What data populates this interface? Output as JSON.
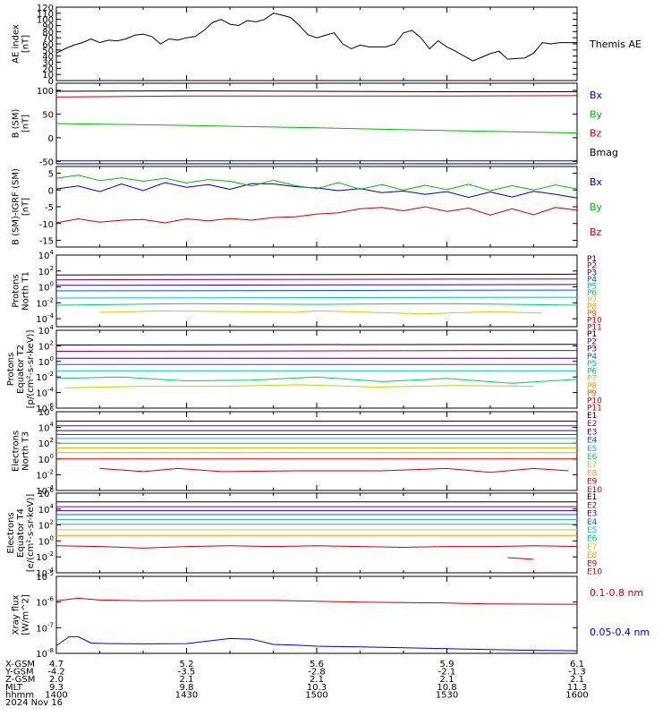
{
  "chart_data": [
    {
      "type": "line",
      "ylabel": [
        "AE index",
        "[nT]"
      ],
      "ylim": [
        0,
        120
      ],
      "yticks": [
        0,
        10,
        20,
        30,
        40,
        50,
        60,
        70,
        80,
        90,
        100,
        110,
        120
      ],
      "series": [
        {
          "name": "Themis AE",
          "color": "#000000",
          "x": [
            0,
            2,
            4,
            6,
            8,
            10,
            12,
            14,
            16,
            18,
            20,
            22,
            24,
            26,
            28,
            30,
            32,
            34,
            36,
            38,
            40,
            42,
            44,
            46,
            48,
            50,
            52,
            54,
            56,
            58,
            60,
            62,
            64,
            66,
            68,
            70,
            72,
            74,
            76,
            78,
            80,
            82,
            84,
            86,
            88,
            90,
            92,
            94,
            96,
            98,
            100,
            102,
            104,
            106,
            108,
            110,
            112,
            114,
            116,
            118,
            120
          ],
          "y": [
            45,
            52,
            58,
            62,
            68,
            62,
            66,
            65,
            68,
            74,
            76,
            72,
            60,
            68,
            66,
            70,
            72,
            82,
            95,
            100,
            92,
            90,
            98,
            96,
            100,
            110,
            107,
            103,
            90,
            75,
            70,
            74,
            78,
            60,
            52,
            58,
            55,
            55,
            55,
            60,
            78,
            82,
            70,
            52,
            65,
            55,
            48,
            40,
            32,
            38,
            44,
            48,
            35,
            36,
            37,
            45,
            62,
            60,
            62,
            62,
            62
          ]
        }
      ]
    },
    {
      "type": "line",
      "ylabel": [
        "B (SM)",
        "[nT]"
      ],
      "ylim": [
        -55,
        115
      ],
      "yticks": [
        -50,
        0,
        50,
        100
      ],
      "series": [
        {
          "name": "Bx",
          "color": "#0000cc",
          "x": [
            0,
            120
          ],
          "y": [
            -49,
            -49
          ]
        },
        {
          "name": "By",
          "color": "#00bb00",
          "x": [
            0,
            30,
            60,
            90,
            120
          ],
          "y": [
            30,
            26,
            21,
            15,
            10
          ]
        },
        {
          "name": "Bz",
          "color": "#cc0000",
          "x": [
            0,
            30,
            60,
            90,
            120
          ],
          "y": [
            86,
            88,
            88,
            88,
            89
          ]
        },
        {
          "name": "Bmag",
          "color": "#000000",
          "x": [
            0,
            30,
            60,
            90,
            120
          ],
          "y": [
            98,
            99,
            98,
            97,
            97
          ]
        }
      ]
    },
    {
      "type": "line",
      "ylabel": [
        "B (SM)-IGRF (SM)",
        "[nT]"
      ],
      "ylim": [
        -17,
        7
      ],
      "yticks": [
        -15,
        -10,
        -5,
        0,
        5
      ],
      "series": [
        {
          "name": "Bx",
          "color": "#0000cc",
          "x": [
            0,
            5,
            10,
            15,
            20,
            25,
            30,
            35,
            40,
            45,
            50,
            55,
            60,
            65,
            70,
            75,
            80,
            85,
            90,
            95,
            100,
            105,
            110,
            115,
            120
          ],
          "y": [
            0.3,
            1.2,
            -0.5,
            1.8,
            -0.2,
            2.2,
            0.8,
            1.6,
            0.2,
            1.9,
            1.8,
            1.0,
            0.6,
            -0.2,
            0.4,
            -0.8,
            -0.3,
            -1.3,
            -0.5,
            -2.2,
            -0.6,
            -2.1,
            -0.4,
            -1.3,
            -2.4
          ]
        },
        {
          "name": "By",
          "color": "#00bb00",
          "x": [
            0,
            5,
            10,
            15,
            20,
            25,
            30,
            35,
            40,
            45,
            50,
            55,
            60,
            65,
            70,
            75,
            80,
            85,
            90,
            95,
            100,
            105,
            110,
            115,
            120
          ],
          "y": [
            3.5,
            4.4,
            2.8,
            3.6,
            2.6,
            3.5,
            2.1,
            3.1,
            2.6,
            1.2,
            2.9,
            1.3,
            0.4,
            2.2,
            0.2,
            1.6,
            0.0,
            1.4,
            0.1,
            1.7,
            -0.2,
            1.3,
            0.0,
            1.5,
            0.3
          ]
        },
        {
          "name": "Bz",
          "color": "#cc0000",
          "x": [
            0,
            5,
            10,
            15,
            20,
            25,
            30,
            35,
            40,
            45,
            50,
            55,
            60,
            65,
            70,
            75,
            80,
            85,
            90,
            95,
            100,
            105,
            110,
            115,
            120
          ],
          "y": [
            -9.8,
            -8.6,
            -9.6,
            -9.0,
            -8.8,
            -9.8,
            -8.6,
            -9.2,
            -8.5,
            -9.0,
            -8.2,
            -8.0,
            -7.2,
            -6.8,
            -5.6,
            -5.2,
            -6.2,
            -5.0,
            -6.4,
            -5.4,
            -7.5,
            -5.6,
            -7.4,
            -5.2,
            -6.0
          ]
        }
      ]
    },
    {
      "type": "line",
      "log": true,
      "ylabel": [
        "Protons",
        "North T1"
      ],
      "ylim_exp": [
        -5,
        4
      ],
      "yticks": [
        "10^4",
        "10^2",
        "10^0",
        "10^-2",
        "10^-4"
      ],
      "series": [
        {
          "name": "P1",
          "color": "#000000",
          "x": [
            0,
            120
          ],
          "y": [
            1.5,
            1.6
          ]
        },
        {
          "name": "P2",
          "color": "#99004c",
          "x": [
            0,
            120
          ],
          "y": [
            0.9,
            1.0
          ]
        },
        {
          "name": "P3",
          "color": "#330099",
          "x": [
            0,
            120
          ],
          "y": [
            0.2,
            0.3
          ]
        },
        {
          "name": "P4",
          "color": "#0055ff",
          "x": [
            0,
            120
          ],
          "y": [
            -0.5,
            -0.4
          ]
        },
        {
          "name": "P5",
          "color": "#00bbcc",
          "x": [
            0,
            120
          ],
          "y": [
            -1.4,
            -1.3
          ]
        },
        {
          "name": "P6",
          "color": "#00cc66",
          "x": [
            0,
            30,
            60,
            90,
            120
          ],
          "y": [
            -2.3,
            -2.1,
            -2.2,
            -2.1,
            -2.3
          ]
        },
        {
          "name": "P7",
          "color": "#cccc00",
          "x": [
            10,
            25,
            55,
            60,
            85,
            100,
            112
          ],
          "y": [
            -3.2,
            -3.0,
            -3.2,
            -3.0,
            -3.4,
            -3.1,
            -3.3
          ]
        },
        {
          "name": "P8",
          "color": "#ff9900",
          "x": [],
          "y": []
        },
        {
          "name": "P9",
          "color": "#ff5500",
          "x": [],
          "y": []
        },
        {
          "name": "P10",
          "color": "#cc0000",
          "x": [],
          "y": []
        },
        {
          "name": "P11",
          "color": "#cc0000",
          "x": [],
          "y": []
        }
      ]
    },
    {
      "type": "line",
      "log": true,
      "ylabel": [
        "Protons",
        "Equator T2",
        "[p/(cm²-s-sr-keV)]"
      ],
      "ylim_exp": [
        -6,
        4
      ],
      "yticks": [
        "10^4",
        "10^2",
        "10^0",
        "10^-2",
        "10^-4",
        "10^-6"
      ],
      "series": [
        {
          "name": "P1",
          "color": "#000000",
          "x": [
            0,
            120
          ],
          "y": [
            2.1,
            2.2
          ]
        },
        {
          "name": "P2",
          "color": "#99004c",
          "x": [
            0,
            120
          ],
          "y": [
            1.3,
            1.4
          ]
        },
        {
          "name": "P3",
          "color": "#330099",
          "x": [
            0,
            120
          ],
          "y": [
            0.4,
            0.4
          ]
        },
        {
          "name": "P4",
          "color": "#0055ff",
          "x": [
            0,
            120
          ],
          "y": [
            -0.4,
            -0.4
          ]
        },
        {
          "name": "P5",
          "color": "#00bbcc",
          "x": [
            0,
            120
          ],
          "y": [
            -1.2,
            -1.2
          ]
        },
        {
          "name": "P6",
          "color": "#00cc66",
          "x": [
            0,
            15,
            30,
            45,
            60,
            75,
            90,
            105,
            120
          ],
          "y": [
            -2.2,
            -2.0,
            -2.5,
            -2.4,
            -2.0,
            -2.6,
            -2.2,
            -2.8,
            -2.3
          ]
        },
        {
          "name": "P7",
          "color": "#cccc00",
          "x": [
            2,
            20,
            38,
            56,
            74,
            92,
            110
          ],
          "y": [
            -3.4,
            -3.2,
            -3.2,
            -3.0,
            -3.3,
            -3.1,
            -3.2
          ]
        },
        {
          "name": "P8",
          "color": "#ff9900",
          "x": [],
          "y": []
        },
        {
          "name": "P9",
          "color": "#ff5500",
          "x": [],
          "y": []
        },
        {
          "name": "P10",
          "color": "#cc0000",
          "x": [],
          "y": []
        },
        {
          "name": "P11",
          "color": "#cc0000",
          "x": [],
          "y": []
        }
      ]
    },
    {
      "type": "line",
      "log": true,
      "ylabel": [
        "Electrons",
        "North T3"
      ],
      "ylim_exp": [
        -4,
        6
      ],
      "yticks": [
        "10^6",
        "10^4",
        "10^2",
        "10^0",
        "10^-2",
        "10^-4"
      ],
      "series": [
        {
          "name": "E1",
          "color": "#000000",
          "x": [
            0,
            120
          ],
          "y": [
            4.8,
            4.8
          ]
        },
        {
          "name": "E2",
          "color": "#99004c",
          "x": [
            0,
            120
          ],
          "y": [
            4.2,
            4.2
          ]
        },
        {
          "name": "E3",
          "color": "#330099",
          "x": [
            0,
            120
          ],
          "y": [
            3.6,
            3.6
          ]
        },
        {
          "name": "E4",
          "color": "#0055ff",
          "x": [
            0,
            120
          ],
          "y": [
            3.1,
            3.1
          ]
        },
        {
          "name": "E5",
          "color": "#00bbcc",
          "x": [
            0,
            120
          ],
          "y": [
            2.6,
            2.6
          ]
        },
        {
          "name": "E6",
          "color": "#00cc66",
          "x": [
            0,
            120
          ],
          "y": [
            2.0,
            2.0
          ]
        },
        {
          "name": "E7",
          "color": "#cccc00",
          "x": [
            0,
            120
          ],
          "y": [
            1.4,
            1.4
          ]
        },
        {
          "name": "E8",
          "color": "#ff9900",
          "x": [
            0,
            120
          ],
          "y": [
            0.8,
            0.8
          ]
        },
        {
          "name": "E9",
          "color": "#cc0000",
          "x": [
            0,
            120
          ],
          "y": [
            0.0,
            0.0
          ]
        },
        {
          "name": "E10",
          "color": "#cc0000",
          "x": [
            10,
            20,
            28,
            38,
            55,
            75,
            90,
            100,
            110,
            118
          ],
          "y": [
            -1.2,
            -1.6,
            -1.2,
            -1.6,
            -1.5,
            -1.5,
            -1.2,
            -1.7,
            -1.2,
            -1.5
          ]
        }
      ]
    },
    {
      "type": "line",
      "log": true,
      "ylabel": [
        "Electrons",
        "Equator T4",
        "[e/(cm²-s-sr-keV)]"
      ],
      "ylim_exp": [
        -4,
        6
      ],
      "yticks": [
        "10^6",
        "10^4",
        "10^2",
        "10^0",
        "10^-2",
        "10^-4"
      ],
      "series": [
        {
          "name": "E1",
          "color": "#000000",
          "x": [
            0,
            120
          ],
          "y": [
            4.9,
            4.9
          ]
        },
        {
          "name": "E2",
          "color": "#99004c",
          "x": [
            0,
            120
          ],
          "y": [
            4.3,
            4.3
          ]
        },
        {
          "name": "E3",
          "color": "#330099",
          "x": [
            0,
            120
          ],
          "y": [
            3.8,
            3.8
          ]
        },
        {
          "name": "E4",
          "color": "#0055ff",
          "x": [
            0,
            120
          ],
          "y": [
            3.3,
            3.3
          ]
        },
        {
          "name": "E5",
          "color": "#00bbcc",
          "x": [
            0,
            120
          ],
          "y": [
            2.7,
            2.7
          ]
        },
        {
          "name": "E6",
          "color": "#00cc66",
          "x": [
            0,
            120
          ],
          "y": [
            2.1,
            2.1
          ]
        },
        {
          "name": "E7",
          "color": "#cccc00",
          "x": [
            0,
            120
          ],
          "y": [
            1.4,
            1.4
          ]
        },
        {
          "name": "E8",
          "color": "#ff9900",
          "x": [
            0,
            120
          ],
          "y": [
            0.7,
            0.7
          ]
        },
        {
          "name": "E9",
          "color": "#cc0000",
          "x": [
            0,
            10,
            20,
            30,
            40,
            50,
            60,
            70,
            80,
            90,
            100,
            110,
            120
          ],
          "y": [
            -0.6,
            -0.7,
            -0.9,
            -0.7,
            -0.6,
            -0.7,
            -0.6,
            -0.7,
            -0.8,
            -0.7,
            -0.7,
            -0.6,
            -0.7
          ]
        },
        {
          "name": "E10",
          "color": "#cc0000",
          "x": [
            104,
            110
          ],
          "y": [
            -2.1,
            -2.3
          ]
        }
      ]
    },
    {
      "type": "line",
      "log": true,
      "ylabel": [
        "Xray flux",
        "[W/m^2]"
      ],
      "ylim_exp": [
        -8,
        -5
      ],
      "yticks": [
        "10^-5",
        "10^-6",
        "10^-7",
        "10^-8"
      ],
      "series": [
        {
          "name": "0.1-0.8 nm",
          "color": "#cc0000",
          "x": [
            0,
            5,
            10,
            20,
            30,
            40,
            50,
            60,
            70,
            80,
            90,
            100,
            110,
            120
          ],
          "y": [
            -5.95,
            -5.85,
            -5.92,
            -5.95,
            -5.93,
            -5.94,
            -5.94,
            -5.97,
            -6.0,
            -6.02,
            -6.04,
            -6.07,
            -6.08,
            -6.09
          ]
        },
        {
          "name": "0.05-0.4 nm",
          "color": "#0000cc",
          "x": [
            0,
            3,
            5,
            8,
            12,
            20,
            30,
            40,
            45,
            50,
            55,
            60,
            70,
            80,
            90,
            100,
            110,
            120
          ],
          "y": [
            -7.7,
            -7.35,
            -7.35,
            -7.6,
            -7.62,
            -7.63,
            -7.62,
            -7.42,
            -7.45,
            -7.65,
            -7.68,
            -7.72,
            -7.75,
            -7.78,
            -7.82,
            -7.85,
            -7.88,
            -7.9
          ]
        }
      ]
    }
  ],
  "footer": {
    "labels": [
      "X-GSM",
      "Y-GSM",
      "Z-GSM",
      "MLT",
      "hhmm",
      "2024 Nov 16"
    ],
    "columns": [
      {
        "minute": 0,
        "vals": [
          "4.7",
          "-4.2",
          "2.0",
          "9.3",
          "1400"
        ]
      },
      {
        "minute": 30,
        "vals": [
          "5.2",
          "-3.5",
          "2.1",
          "9.8",
          "1430"
        ]
      },
      {
        "minute": 60,
        "vals": [
          "5.6",
          "-2.8",
          "2.1",
          "10.3",
          "1500"
        ]
      },
      {
        "minute": 90,
        "vals": [
          "5.9",
          "-2.1",
          "2.1",
          "10.8",
          "1530"
        ]
      },
      {
        "minute": 120,
        "vals": [
          "6.1",
          "-1.3",
          "2.1",
          "11.3",
          "1600"
        ]
      }
    ]
  }
}
